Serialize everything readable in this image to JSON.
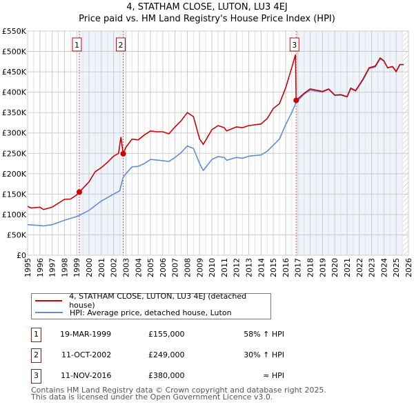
{
  "title": "4, STATHAM CLOSE, LUTON, LU3 4EJ",
  "subtitle": "Price paid vs. HM Land Registry's House Price Index (HPI)",
  "chart_data": {
    "type": "line",
    "title": "4, STATHAM CLOSE, LUTON, LU3 4EJ — Price paid vs. HM Land Registry's House Price Index (HPI)",
    "xlim": [
      1995,
      2026
    ],
    "ylim": [
      0,
      550000
    ],
    "x_ticks": [
      "1995",
      "1996",
      "1997",
      "1998",
      "1999",
      "2000",
      "2001",
      "2002",
      "2003",
      "2004",
      "2005",
      "2006",
      "2007",
      "2008",
      "2009",
      "2010",
      "2011",
      "2012",
      "2013",
      "2014",
      "2015",
      "2016",
      "2017",
      "2018",
      "2019",
      "2020",
      "2021",
      "2022",
      "2023",
      "2024",
      "2025",
      "2026"
    ],
    "y_ticks": [
      "£0",
      "£50K",
      "£100K",
      "£150K",
      "£200K",
      "£250K",
      "£300K",
      "£350K",
      "£400K",
      "£450K",
      "£500K",
      "£550K"
    ],
    "grid": true,
    "series": [
      {
        "name": "4, STATHAM CLOSE, LUTON, LU3 4EJ (detached house)",
        "color": "#cc0000",
        "x": [
          1995,
          1995.3,
          1996,
          1996.3,
          1997,
          1998,
          1998.5,
          1999,
          1999.21,
          2000,
          2000.5,
          2001,
          2001.5,
          2002,
          2002.4,
          2002.6,
          2002.78,
          2003,
          2003.5,
          2004,
          2004.5,
          2005,
          2005.5,
          2006,
          2006.5,
          2007,
          2007.5,
          2008,
          2008.5,
          2009,
          2009.3,
          2010,
          2010.5,
          2011,
          2011.2,
          2012,
          2012.5,
          2013,
          2014,
          2014.5,
          2015,
          2015.5,
          2016,
          2016.5,
          2016.8,
          2016.86,
          2017.5,
          2018,
          2019,
          2019.5,
          2020,
          2020.5,
          2021,
          2021.3,
          2021.7,
          2022.3,
          2022.8,
          2023.3,
          2023.7,
          2024,
          2024.3,
          2024.7,
          2025,
          2025.3,
          2025.6
        ],
        "y": [
          120000,
          116000,
          118000,
          112000,
          118000,
          137000,
          138000,
          148000,
          155000,
          180000,
          205000,
          215000,
          228000,
          243000,
          250000,
          290000,
          249000,
          265000,
          285000,
          283000,
          295000,
          305000,
          303000,
          303000,
          298000,
          315000,
          330000,
          350000,
          340000,
          285000,
          272000,
          308000,
          318000,
          313000,
          305000,
          315000,
          313000,
          318000,
          322000,
          335000,
          360000,
          372000,
          410000,
          460000,
          492000,
          380000,
          397000,
          408000,
          402000,
          408000,
          393000,
          394000,
          389000,
          410000,
          404000,
          432000,
          460000,
          464000,
          484000,
          477000,
          460000,
          463000,
          451000,
          468000,
          468000
        ]
      },
      {
        "name": "HPI: Average price, detached house, Luton",
        "color": "#5b8fd4",
        "x": [
          1995,
          1996,
          1996.3,
          1997,
          1998,
          1999,
          1999.21,
          2000,
          2001,
          2002,
          2002.5,
          2002.78,
          2003,
          2003.5,
          2004,
          2004.5,
          2005,
          2006,
          2006.5,
          2007,
          2007.5,
          2008,
          2008.5,
          2009,
          2009.3,
          2010,
          2010.5,
          2011,
          2011.2,
          2012,
          2012.5,
          2013,
          2014,
          2014.5,
          2015,
          2015.5,
          2016,
          2016.5,
          2016.86,
          2017.5,
          2018,
          2019,
          2019.5,
          2020,
          2020.5,
          2021,
          2021.3,
          2021.7,
          2022.3,
          2022.8,
          2023.3,
          2023.7,
          2024,
          2024.3,
          2024.7,
          2025,
          2025.3,
          2025.6
        ],
        "y": [
          75000,
          73000,
          72000,
          75000,
          86000,
          95000,
          98000,
          110000,
          133000,
          150000,
          158000,
          191000,
          200000,
          217000,
          218000,
          225000,
          235000,
          232000,
          230000,
          240000,
          252000,
          268000,
          262000,
          225000,
          208000,
          235000,
          242000,
          240000,
          233000,
          240000,
          238000,
          243000,
          246000,
          255000,
          270000,
          285000,
          320000,
          350000,
          375000,
          395000,
          405000,
          400000,
          407000,
          392000,
          393000,
          388000,
          408000,
          403000,
          430000,
          458000,
          462000,
          482000,
          476000,
          460000,
          462000,
          450000,
          467000,
          468000
        ]
      }
    ],
    "annotations": [
      {
        "label": "1",
        "x": 1999.21,
        "y": 155000
      },
      {
        "label": "2",
        "x": 2002.78,
        "y": 249000
      },
      {
        "label": "3",
        "x": 2016.86,
        "y": 380000
      }
    ],
    "shaded_ranges": [
      [
        1999.21,
        2002.78
      ],
      [
        2016.86,
        2025.5
      ]
    ],
    "hatched_range": [
      2025.5,
      2026
    ]
  },
  "legend": {
    "items": [
      {
        "label": "4, STATHAM CLOSE, LUTON, LU3 4EJ (detached house)",
        "color": "#cc0000"
      },
      {
        "label": "HPI: Average price, detached house, Luton",
        "color": "#5b8fd4"
      }
    ]
  },
  "sales": [
    {
      "num": "1",
      "date": "19-MAR-1999",
      "price": "£155,000",
      "hpi": "58% ↑ HPI"
    },
    {
      "num": "2",
      "date": "11-OCT-2002",
      "price": "£249,000",
      "hpi": "30% ↑ HPI"
    },
    {
      "num": "3",
      "date": "11-NOV-2016",
      "price": "£380,000",
      "hpi": "≈ HPI"
    }
  ],
  "footer": [
    "Contains HM Land Registry data © Crown copyright and database right 2025.",
    "This data is licensed under the Open Government Licence v3.0."
  ]
}
